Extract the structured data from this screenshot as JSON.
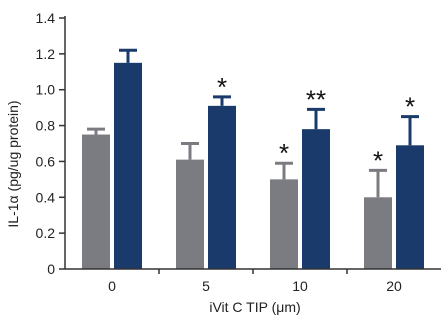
{
  "chart_data": {
    "type": "bar",
    "title": "",
    "xlabel": "iVit C TIP (μm)",
    "ylabel": "IL-1α (pg/ug protein)",
    "categories": [
      "0",
      "5",
      "10",
      "20"
    ],
    "ylim": [
      0,
      1.4
    ],
    "yticks": [
      "0",
      "0.2",
      "0.4",
      "0.6",
      "0.8",
      "1.0",
      "1.2",
      "1.4"
    ],
    "ytick_values": [
      0,
      0.2,
      0.4,
      0.6,
      0.8,
      1.0,
      1.2,
      1.4
    ],
    "legend": "none",
    "grid": false,
    "series": [
      {
        "color": "#7b7b82",
        "values": [
          0.75,
          0.61,
          0.5,
          0.4
        ],
        "errors": [
          0.03,
          0.09,
          0.09,
          0.15
        ],
        "significance": [
          "",
          "",
          "*",
          "*"
        ]
      },
      {
        "color": "#1a3a6b",
        "values": [
          1.15,
          0.91,
          0.78,
          0.69
        ],
        "errors": [
          0.07,
          0.05,
          0.11,
          0.16
        ],
        "significance": [
          "",
          "*",
          "**",
          "*"
        ]
      }
    ]
  }
}
